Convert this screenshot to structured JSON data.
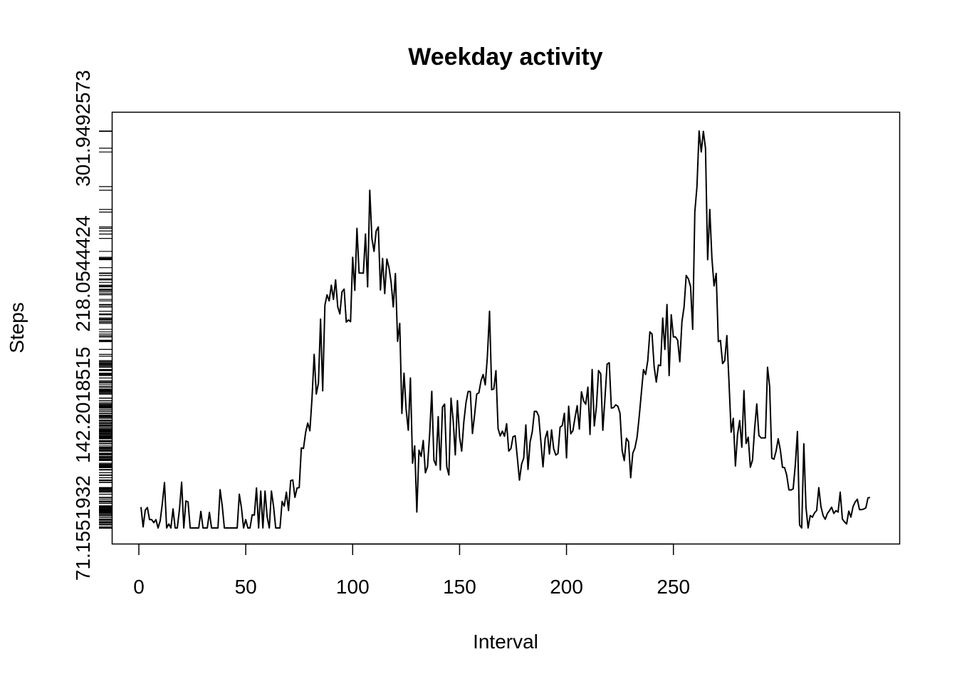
{
  "chart_data": {
    "type": "line",
    "title": "Weekday activity",
    "xlabel": "Interval",
    "ylabel": "Steps",
    "xlim": [
      1,
      288
    ],
    "x_ticks": [
      0,
      50,
      100,
      150,
      200,
      250
    ],
    "y_ticks": [
      71.1551932,
      142.2018515,
      218.0544424,
      301.9492573
    ],
    "y_tick_labels": [
      "71.1551932",
      "142.2018515",
      "218.0544424",
      "301.9492573"
    ],
    "ylim": [
      71.2,
      302.0
    ],
    "grid": false,
    "legend": "none",
    "series": [
      {
        "values": [
          83.3,
          71.8,
          81.5,
          83,
          76,
          76,
          74.3,
          76,
          71.2,
          75.4,
          85.4,
          97.4,
          71.2,
          73.5,
          71.2,
          82.2,
          71.2,
          71.2,
          82.2,
          97.6,
          71.2,
          86.8,
          86.2,
          71.2,
          71.2,
          71.2,
          71.2,
          71.2,
          80.8,
          71.2,
          71.2,
          71.2,
          80.2,
          71.2,
          71.2,
          71.2,
          71.2,
          93.3,
          84,
          71.2,
          71.2,
          71.2,
          71.2,
          71.2,
          71.2,
          71.2,
          90.7,
          82.7,
          71.2,
          76,
          71.2,
          71.2,
          78.8,
          78.6,
          94.3,
          71.2,
          92.5,
          71.2,
          92.5,
          77.5,
          71.2,
          92.5,
          83.6,
          71.2,
          71.2,
          71.2,
          86.5,
          83.8,
          91.9,
          81.3,
          98.5,
          98.9,
          88.9,
          94.3,
          94.5,
          117.4,
          117.1,
          126.3,
          131.8,
          127.3,
          146.2,
          171.4,
          148.5,
          154.8,
          191.8,
          150.4,
          199.9,
          205.8,
          202.3,
          211.4,
          203.2,
          214.4,
          199,
          194.8,
          207.6,
          209.1,
          190.1,
          191.3,
          190.3,
          227.5,
          208.4,
          244.2,
          218.4,
          218.4,
          218.3,
          240.9,
          210.4,
          266.2,
          238.4,
          230.9,
          242.7,
          245,
          208.6,
          226.8,
          206.5,
          226.5,
          221.5,
          213,
          198.8,
          218.1,
          179,
          189.3,
          137.3,
          160.6,
          139.5,
          127.6,
          157.8,
          108.6,
          118.6,
          80.4,
          116.1,
          112.5,
          121.7,
          103.1,
          106.6,
          125.5,
          150.1,
          110.3,
          107.4,
          135.5,
          104.7,
          141,
          142.7,
          106.6,
          101.8,
          146.1,
          133.5,
          113.4,
          144.7,
          123.8,
          115.6,
          132.5,
          143.5,
          150,
          150,
          125.7,
          136.4,
          148.5,
          149.2,
          156.1,
          159.8,
          153.8,
          170.4,
          196.3,
          151,
          151.5,
          162,
          128.6,
          124.3,
          127.1,
          124.2,
          131.4,
          115.6,
          117,
          123.9,
          124.4,
          112,
          98.8,
          108,
          111.6,
          130.7,
          105,
          120.9,
          126.7,
          138.5,
          138.5,
          135.9,
          121.5,
          106.5,
          122.8,
          127.1,
          113.9,
          127.8,
          116.9,
          113.3,
          114.2,
          129.4,
          130.3,
          137.4,
          111.7,
          141.5,
          125.6,
          127.4,
          135.1,
          141.8,
          128.3,
          149.8,
          144.6,
          142.6,
          152.5,
          125.2,
          162.7,
          130.1,
          141.2,
          162.1,
          160.3,
          127.6,
          146.1,
          165.8,
          166.6,
          140.4,
          140.7,
          142.3,
          141.5,
          137.5,
          116,
          110.1,
          123,
          121.1,
          100.2,
          114.4,
          117.4,
          123.6,
          135.5,
          149.1,
          162.6,
          159.8,
          167.8,
          184.4,
          183.2,
          164.2,
          155.4,
          165.3,
          164.9,
          192.4,
          174.3,
          200.2,
          159.2,
          194.3,
          181.5,
          181.5,
          179.6,
          167.2,
          190.3,
          198.8,
          217,
          215,
          210.6,
          185.9,
          253.6,
          268.3,
          300.4,
          288.3,
          300.2,
          290.5,
          226.1,
          255.1,
          227,
          211,
          218.2,
          178.8,
          179.5,
          166.1,
          167.8,
          182.3,
          155.4,
          126.5,
          134.5,
          107,
          125.2,
          133.2,
          117.8,
          150.5,
          120,
          123.6,
          106.3,
          110.4,
          128.6,
          142.8,
          124.6,
          123.2,
          123.2,
          123.2,
          164,
          152.8,
          111.5,
          110.9,
          115.5,
          122.7,
          116.3,
          106.2,
          106,
          101.6,
          93.2,
          93.1,
          93.8,
          107.5,
          126.9,
          72.9,
          71.2,
          119.8,
          83.2,
          71.2,
          78.4,
          77.4,
          79.9,
          81.3,
          94.5,
          83.6,
          78.5,
          76.2,
          79.5,
          81.2,
          83.2,
          79.6,
          81.2,
          80.4,
          91.9,
          76.4,
          74.7,
          73.5,
          80.9,
          77.5,
          83.5,
          86.2,
          87.8,
          81.8,
          81.8,
          82.1,
          82.8,
          88.6,
          88.8
        ]
      }
    ]
  }
}
